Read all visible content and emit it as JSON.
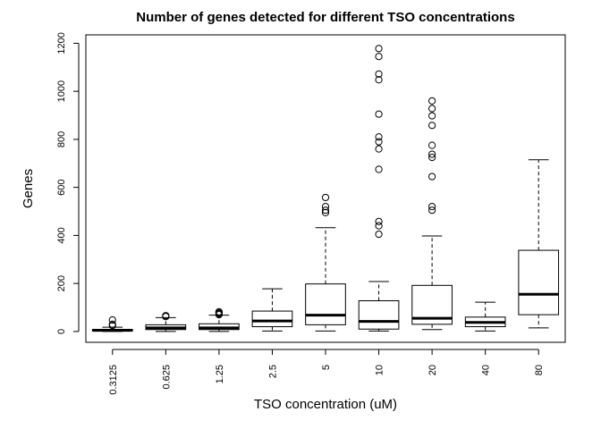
{
  "chart_data": {
    "type": "boxplot",
    "title": "Number of genes detected for different TSO concentrations",
    "xlabel": "TSO concentration (uM)",
    "ylabel": "Genes",
    "ylim": [
      -45,
      1235
    ],
    "yticks": [
      0,
      200,
      400,
      600,
      800,
      1000,
      1200
    ],
    "grid": false,
    "categories": [
      "0.3125",
      "0.625",
      "1.25",
      "2.5",
      "5",
      "10",
      "20",
      "40",
      "80"
    ],
    "boxes": [
      {
        "category": "0.3125",
        "min": 0,
        "q1": 2,
        "median": 5,
        "q3": 9,
        "max": 18,
        "outliers": [
          25,
          30,
          48
        ]
      },
      {
        "category": "0.625",
        "min": 0,
        "q1": 8,
        "median": 15,
        "q3": 28,
        "max": 58,
        "outliers": [
          62,
          66
        ]
      },
      {
        "category": "1.25",
        "min": 0,
        "q1": 8,
        "median": 15,
        "q3": 32,
        "max": 68,
        "outliers": [
          70,
          74,
          78,
          82
        ]
      },
      {
        "category": "2.5",
        "min": 2,
        "q1": 20,
        "median": 44,
        "q3": 85,
        "max": 178,
        "outliers": []
      },
      {
        "category": "5",
        "min": 2,
        "q1": 28,
        "median": 68,
        "q3": 198,
        "max": 432,
        "outliers": [
          495,
          505,
          520,
          558
        ]
      },
      {
        "category": "10",
        "min": 2,
        "q1": 10,
        "median": 42,
        "q3": 128,
        "max": 208,
        "outliers": [
          405,
          440,
          458,
          675,
          760,
          790,
          810,
          905,
          1048,
          1072,
          1145,
          1178
        ]
      },
      {
        "category": "20",
        "min": 8,
        "q1": 30,
        "median": 55,
        "q3": 192,
        "max": 398,
        "outliers": [
          505,
          520,
          645,
          725,
          738,
          775,
          858,
          898,
          928,
          960
        ]
      },
      {
        "category": "40",
        "min": 2,
        "q1": 20,
        "median": 38,
        "q3": 60,
        "max": 122,
        "outliers": []
      },
      {
        "category": "80",
        "min": 15,
        "q1": 70,
        "median": 155,
        "q3": 338,
        "max": 715,
        "outliers": []
      }
    ]
  }
}
